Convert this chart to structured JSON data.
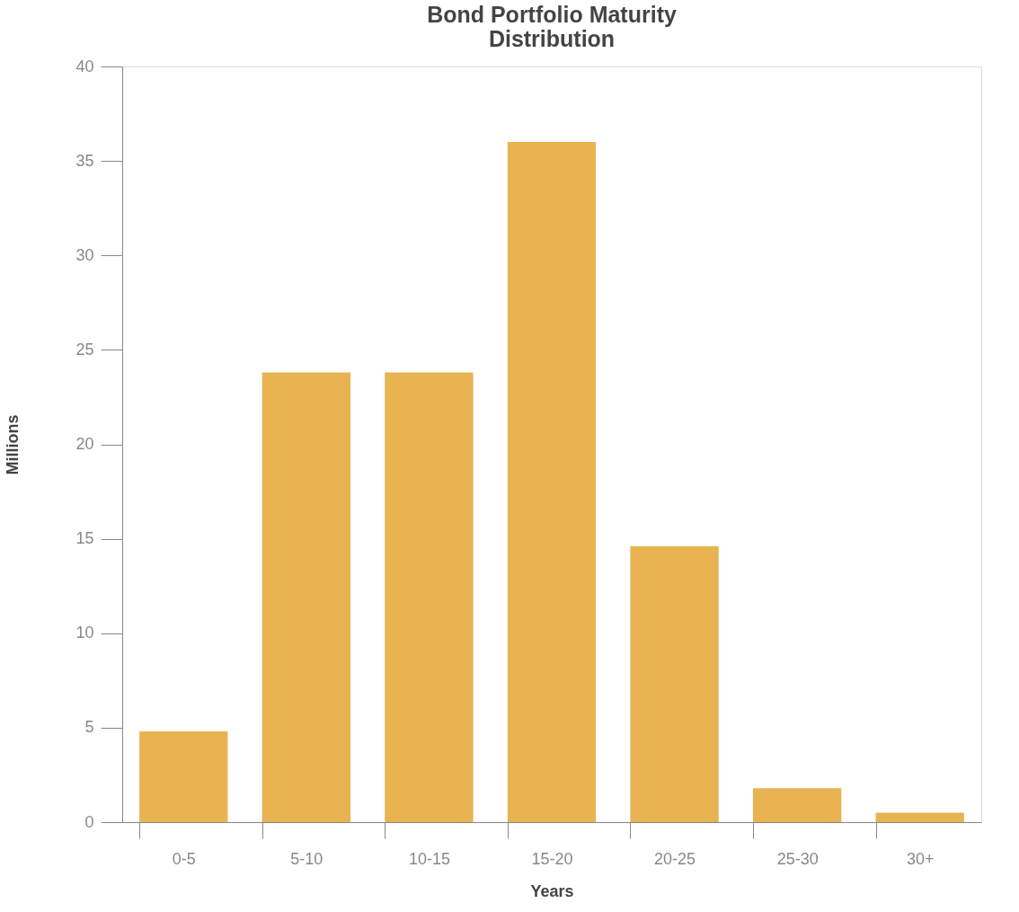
{
  "chart_data": {
    "type": "bar",
    "title": [
      "Bond Portfolio Maturity",
      "Distribution"
    ],
    "xlabel": "Years",
    "ylabel": "Millions",
    "categories": [
      "0-5",
      "5-10",
      "10-15",
      "15-20",
      "20-25",
      "25-30",
      "30+"
    ],
    "values": [
      4.8,
      23.8,
      23.8,
      36,
      14.6,
      1.8,
      0.5
    ],
    "color": "#e8b350",
    "ylim": [
      0,
      40
    ],
    "yticks": [
      0,
      5,
      10,
      15,
      20,
      25,
      30,
      35,
      40
    ],
    "grid": false
  }
}
